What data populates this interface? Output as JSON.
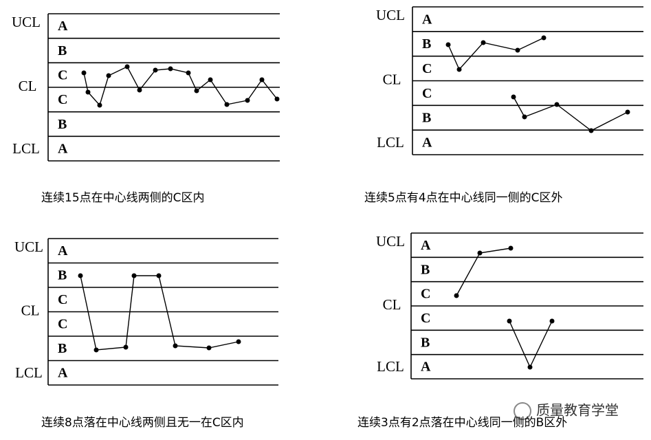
{
  "panels": [
    {
      "labels": {
        "ucl": "UCL",
        "cl": "CL",
        "lcl": "LCL"
      },
      "zones": [
        "A",
        "B",
        "C",
        "C",
        "B",
        "A"
      ],
      "caption": "连续15点在中心线两侧的C区内"
    },
    {
      "labels": {
        "ucl": "UCL",
        "cl": "CL",
        "lcl": "LCL"
      },
      "zones": [
        "A",
        "B",
        "C",
        "C",
        "B",
        "A"
      ],
      "caption": "连续5点有4点在中心线同一侧的C区外"
    },
    {
      "labels": {
        "ucl": "UCL",
        "cl": "CL",
        "lcl": "LCL"
      },
      "zones": [
        "A",
        "B",
        "C",
        "C",
        "B",
        "A"
      ],
      "caption": "连续8点落在中心线两侧且无一在C区内"
    },
    {
      "labels": {
        "ucl": "UCL",
        "cl": "CL",
        "lcl": "LCL"
      },
      "zones": [
        "A",
        "B",
        "C",
        "C",
        "B",
        "A"
      ],
      "caption": "连续3点有2点落在中心线同一侧的B区外"
    }
  ],
  "watermark": "质量教育学堂"
}
